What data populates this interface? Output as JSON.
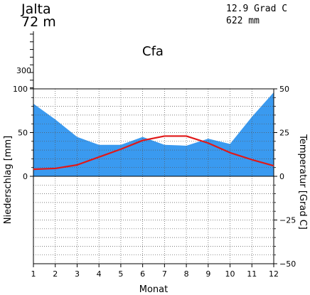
{
  "station": {
    "name": "Jalta",
    "elevation": "72 m",
    "climate_class": "Cfa"
  },
  "summary": {
    "mean_temperature": "12.9 Grad C",
    "annual_precipitation": "622 mm"
  },
  "colors": {
    "precipitation": "#3a9af0",
    "temperature": "#e01818"
  },
  "chart_data": {
    "type": "area",
    "categories": [
      "1",
      "2",
      "3",
      "4",
      "5",
      "6",
      "7",
      "8",
      "9",
      "10",
      "11",
      "12"
    ],
    "series": [
      {
        "name": "Niederschlag",
        "unit": "mm",
        "axis": "left",
        "values": [
          83,
          65,
          45,
          36,
          36,
          45,
          36,
          35,
          43,
          37,
          68,
          96
        ]
      },
      {
        "name": "Temperatur",
        "unit": "Grad C",
        "axis": "right",
        "values": [
          4,
          4.5,
          6.5,
          11,
          15.5,
          20.5,
          23,
          23,
          19,
          13.5,
          9.5,
          6
        ]
      }
    ],
    "xlabel": "Monat",
    "ylabel_left": "Niederschlag [mm]",
    "ylabel_right": "Temperatur [Grad C]",
    "ylim_left": [
      -100,
      100
    ],
    "ylim_right": [
      -50,
      50
    ],
    "left_ticks": [
      "0",
      "50",
      "100"
    ],
    "left_extra_tick": "300",
    "right_ticks": [
      "50",
      "25",
      "0",
      "−25",
      "−50"
    ],
    "grid": true
  }
}
